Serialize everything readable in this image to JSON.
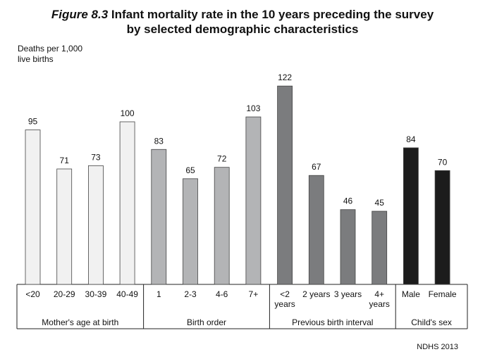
{
  "figure": {
    "label": "Figure 8.3",
    "title_line1": "Infant mortality rate in the 10 years preceding the survey",
    "title_line2": "by selected demographic characteristics"
  },
  "source": "NDHS 2013",
  "chart_data": {
    "type": "bar",
    "ylabel_line1": "Deaths per 1,000",
    "ylabel_line2": "live births",
    "ylim": [
      0,
      130
    ],
    "grid": false,
    "legend": "none",
    "groups": [
      {
        "name": "Mother's age at birth",
        "color": "#f1f1f1",
        "categories": [
          [
            "<20"
          ],
          [
            "20-29"
          ],
          [
            "30-39"
          ],
          [
            "40-49"
          ]
        ],
        "values": [
          95,
          71,
          73,
          100
        ]
      },
      {
        "name": "Birth order",
        "color": "#b3b4b6",
        "categories": [
          [
            "1"
          ],
          [
            "2-3"
          ],
          [
            "4-6"
          ],
          [
            "7+"
          ]
        ],
        "values": [
          83,
          65,
          72,
          103
        ]
      },
      {
        "name": "Previous birth interval",
        "color": "#7b7c7e",
        "categories": [
          [
            "<2",
            "years"
          ],
          [
            "2 years"
          ],
          [
            "3 years"
          ],
          [
            "4+",
            "years"
          ]
        ],
        "values": [
          122,
          67,
          46,
          45
        ]
      },
      {
        "name": "Child's sex",
        "color": "#1c1c1c",
        "categories": [
          [
            "Male"
          ],
          [
            "Female"
          ]
        ],
        "values": [
          84,
          70
        ]
      }
    ]
  }
}
